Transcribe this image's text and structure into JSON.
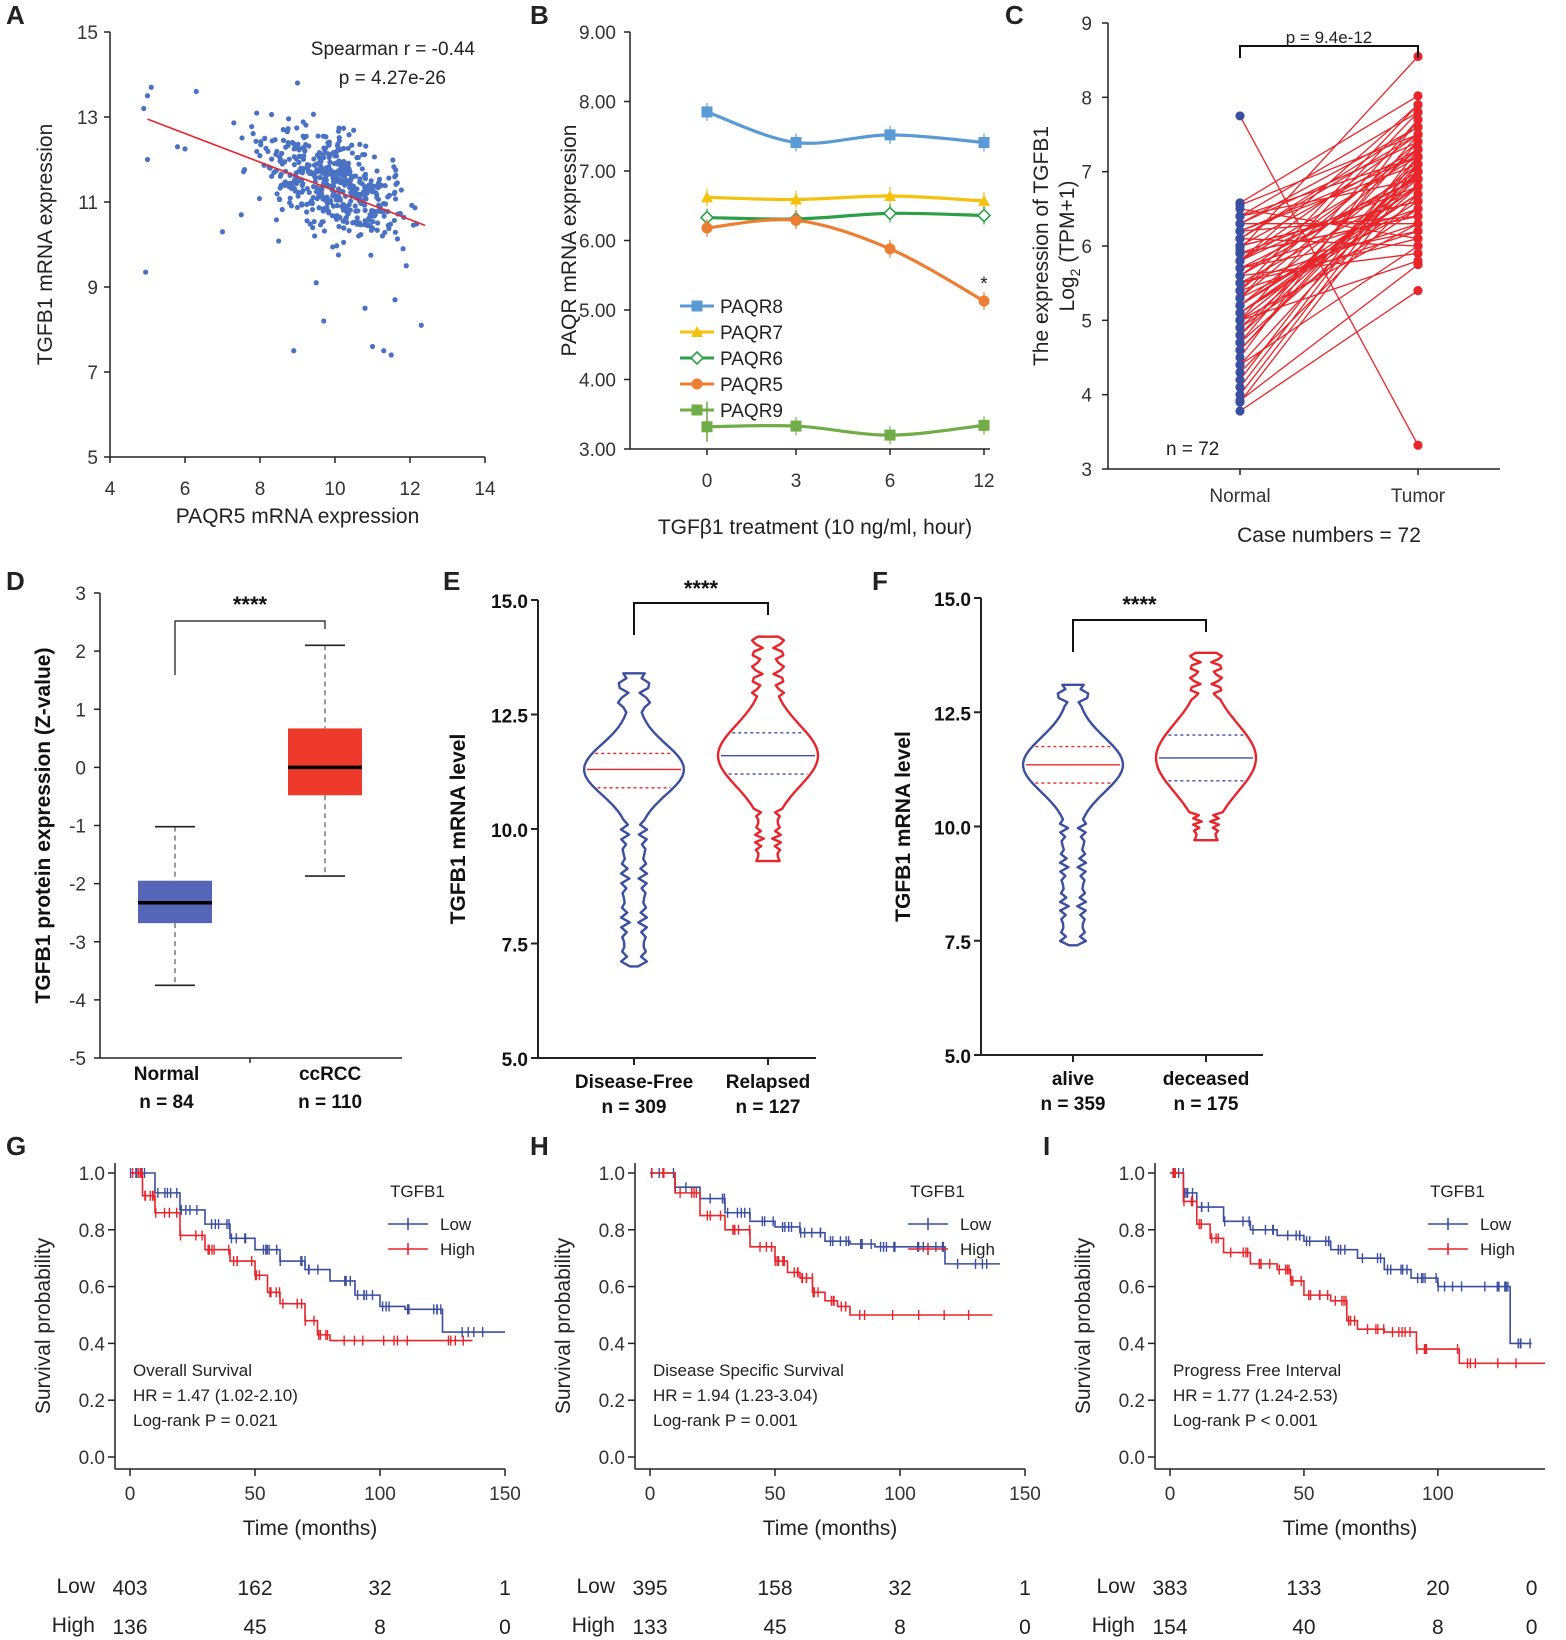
{
  "colors": {
    "blue": "#3a4fa0",
    "red": "#e8252a",
    "scatter": "#4a72c4",
    "fitline": "#e8252a",
    "paqr8": "#5b9bd5",
    "paqr7": "#f4c20d",
    "paqr6": "#2ca048",
    "paqr5": "#ed7d31",
    "paqr9": "#70ad47",
    "box_normal": "#5565b8",
    "box_tumor": "#ee3a2a"
  },
  "chart_data": [
    {
      "panel": "A",
      "type": "scatter",
      "xlabel": "PAQR5 mRNA expression",
      "ylabel": "TGFB1 mRNA expression",
      "xlim": [
        4,
        14
      ],
      "ylim": [
        5,
        15
      ],
      "xticks": [
        "4",
        "6",
        "8",
        "10",
        "12",
        "14"
      ],
      "yticks": [
        "5",
        "7",
        "9",
        "11",
        "13",
        "15"
      ],
      "annotation": [
        "Spearman r = -0.44",
        "p = 4.27e-26"
      ],
      "fit": {
        "x": [
          5.0,
          12.4
        ],
        "y": [
          12.95,
          10.45
        ]
      },
      "cloud": {
        "center_x": 10.0,
        "center_y": 11.4,
        "n": 520
      },
      "outliers": [
        {
          "x": 5.1,
          "y": 13.7
        },
        {
          "x": 5.0,
          "y": 13.5
        },
        {
          "x": 4.9,
          "y": 13.2
        },
        {
          "x": 5.0,
          "y": 12.0
        },
        {
          "x": 4.95,
          "y": 9.35
        },
        {
          "x": 6.3,
          "y": 13.6
        },
        {
          "x": 5.8,
          "y": 12.3
        },
        {
          "x": 6.0,
          "y": 12.25
        },
        {
          "x": 7.0,
          "y": 10.3
        },
        {
          "x": 7.5,
          "y": 10.7
        },
        {
          "x": 9.5,
          "y": 9.1
        },
        {
          "x": 9.7,
          "y": 8.2
        },
        {
          "x": 10.8,
          "y": 8.5
        },
        {
          "x": 11.0,
          "y": 7.6
        },
        {
          "x": 11.3,
          "y": 7.5
        },
        {
          "x": 11.5,
          "y": 7.4
        },
        {
          "x": 8.9,
          "y": 7.5
        },
        {
          "x": 12.3,
          "y": 8.1
        },
        {
          "x": 11.6,
          "y": 8.7
        },
        {
          "x": 11.9,
          "y": 9.5
        },
        {
          "x": 9.0,
          "y": 13.8
        }
      ]
    },
    {
      "panel": "B",
      "type": "line",
      "xlabel": "TGFβ1 treatment (10 ng/ml, hour)",
      "ylabel": "PAQR mRNA expression",
      "categories": [
        "0",
        "3",
        "6",
        "12"
      ],
      "ylim": [
        3,
        9
      ],
      "yticks": [
        "3.00",
        "4.00",
        "5.00",
        "6.00",
        "7.00",
        "8.00",
        "9.00"
      ],
      "series": [
        {
          "name": "PAQR8",
          "values": [
            7.85,
            7.41,
            7.52,
            7.41
          ]
        },
        {
          "name": "PAQR7",
          "values": [
            6.62,
            6.59,
            6.64,
            6.57
          ]
        },
        {
          "name": "PAQR6",
          "values": [
            6.33,
            6.31,
            6.39,
            6.36
          ]
        },
        {
          "name": "PAQR5",
          "values": [
            6.18,
            6.29,
            5.88,
            5.13
          ]
        },
        {
          "name": "PAQR9",
          "values": [
            3.32,
            3.33,
            3.2,
            3.34
          ]
        }
      ],
      "sig_marker": "*"
    },
    {
      "panel": "C",
      "type": "paired",
      "ylabel": "The expression of TGFB1",
      "ylabel2_pre": "Log",
      "ylabel2_sub": "2",
      "ylabel2_post": " (TPM+1)",
      "categories": [
        "Normal",
        "Tumor"
      ],
      "ylim": [
        3,
        9
      ],
      "yticks": [
        "3",
        "4",
        "5",
        "6",
        "7",
        "8",
        "9"
      ],
      "n_label": "n = 72",
      "pvalue": "p = 9.4e-12",
      "xlabel": "Case numbers = 72",
      "normal": [
        5.0,
        5.5,
        6.2,
        4.4,
        5.8,
        6.0,
        4.8,
        5.3,
        5.9,
        6.4,
        4.2,
        5.6,
        6.1,
        5.1,
        4.6,
        5.7,
        6.3,
        4.9,
        5.4,
        6.5,
        3.9,
        5.2,
        5.8,
        6.0,
        4.5,
        5.5,
        6.2,
        5.0,
        4.7,
        5.9,
        6.1,
        5.3,
        4.3,
        5.6,
        6.4,
        5.7,
        4.1,
        5.1,
        6.3,
        5.4,
        4.8,
        5.8,
        5.2,
        6.0,
        4.4,
        5.6,
        6.2,
        5.0,
        5.9,
        4.6,
        5.3,
        6.1,
        5.5,
        4.9,
        5.7,
        6.0,
        5.2,
        4.0,
        5.8,
        6.3,
        5.4,
        5.1,
        5.6,
        6.4,
        4.7,
        5.0,
        6.55,
        3.78,
        7.75,
        3.92,
        5.95,
        6.58
      ],
      "tumor": [
        6.3,
        6.8,
        7.2,
        6.0,
        7.5,
        6.6,
        7.0,
        7.8,
        6.4,
        6.9,
        7.3,
        5.9,
        7.6,
        6.7,
        7.1,
        6.2,
        7.4,
        6.5,
        7.9,
        6.1,
        7.0,
        6.8,
        7.2,
        6.6,
        7.7,
        6.3,
        7.1,
        6.9,
        7.5,
        6.4,
        6.0,
        7.3,
        6.7,
        7.0,
        7.8,
        6.5,
        7.2,
        6.8,
        7.6,
        6.2,
        7.4,
        6.9,
        7.1,
        6.6,
        7.0,
        7.3,
        6.4,
        7.7,
        6.8,
        7.2,
        6.5,
        7.5,
        6.1,
        7.0,
        6.9,
        7.3,
        6.7,
        7.1,
        7.9,
        6.3,
        7.4,
        6.6,
        7.0,
        7.2,
        6.8,
        5.8,
        7.5,
        5.4,
        3.32,
        5.75,
        8.55,
        8.02
      ]
    },
    {
      "panel": "D",
      "type": "box",
      "ylabel": "TGFB1 protein expression (Z-value)",
      "ylim": [
        -5,
        3
      ],
      "yticks": [
        "-5",
        "-4",
        "-3",
        "-2",
        "-1",
        "0",
        "1",
        "2",
        "3"
      ],
      "groups": [
        {
          "name": "Normal",
          "n": "n = 84",
          "min": -3.75,
          "q1": -2.68,
          "median": -2.33,
          "q3": -1.95,
          "max": -1.02
        },
        {
          "name": "ccRCC",
          "n": "n = 110",
          "min": -1.87,
          "q1": -0.48,
          "median": 0.0,
          "q3": 0.67,
          "max": 2.1
        }
      ],
      "sig": "****"
    },
    {
      "panel": "E",
      "type": "violin",
      "ylabel": "TGFB1 mRNA level",
      "ylim": [
        5,
        15
      ],
      "yticks": [
        "5.0",
        "7.5",
        "10.0",
        "12.5",
        "15.0"
      ],
      "groups": [
        {
          "name": "Disease-Free",
          "n": "n = 309",
          "min": 7.0,
          "max": 13.4,
          "q1": 10.9,
          "median": 11.3,
          "q3": 11.65
        },
        {
          "name": "Relapsed",
          "n": "n = 127",
          "min": 9.3,
          "max": 14.2,
          "q1": 11.2,
          "median": 11.6,
          "q3": 12.1
        }
      ],
      "sig": "****"
    },
    {
      "panel": "F",
      "type": "violin",
      "ylabel": "TGFB1 mRNA level",
      "ylim": [
        5,
        15
      ],
      "yticks": [
        "5.0",
        "7.5",
        "10.0",
        "12.5",
        "15.0"
      ],
      "groups": [
        {
          "name": "alive",
          "n": "n = 359",
          "min": 7.4,
          "max": 13.1,
          "q1": 10.95,
          "median": 11.35,
          "q3": 11.75
        },
        {
          "name": "deceased",
          "n": "n = 175",
          "min": 9.7,
          "max": 13.8,
          "q1": 11.0,
          "median": 11.5,
          "q3": 12.0
        }
      ],
      "sig": "****"
    },
    {
      "panel": "G",
      "type": "km",
      "legend_title": "TGFB1",
      "legend": [
        "Low",
        "High"
      ],
      "xlabel": "Time (months)",
      "ylabel": "Survival probability",
      "xlim": [
        0,
        150
      ],
      "ylim": [
        0,
        1
      ],
      "xticks": [
        "0",
        "50",
        "100",
        "150"
      ],
      "yticks": [
        "0.0",
        "0.2",
        "0.4",
        "0.6",
        "0.8",
        "1.0"
      ],
      "stats": [
        "Overall Survival",
        "HR = 1.47 (1.02-2.10)",
        "Log-rank P = 0.021"
      ],
      "low": {
        "t": [
          0,
          10,
          20,
          30,
          40,
          50,
          60,
          70,
          80,
          90,
          100,
          110,
          118,
          125,
          150
        ],
        "s": [
          1.0,
          0.93,
          0.87,
          0.82,
          0.77,
          0.73,
          0.69,
          0.66,
          0.62,
          0.57,
          0.53,
          0.52,
          0.52,
          0.44,
          0.44
        ]
      },
      "high": {
        "t": [
          0,
          5,
          10,
          20,
          30,
          40,
          50,
          55,
          60,
          70,
          75,
          80,
          100,
          120,
          137
        ],
        "s": [
          1.0,
          0.92,
          0.86,
          0.78,
          0.73,
          0.69,
          0.64,
          0.58,
          0.54,
          0.48,
          0.43,
          0.41,
          0.41,
          0.41,
          0.41
        ]
      },
      "risk": {
        "low": [
          "403",
          "162",
          "32",
          "1"
        ],
        "high": [
          "136",
          "45",
          "8",
          "0"
        ]
      }
    },
    {
      "panel": "H",
      "type": "km",
      "legend_title": "TGFB1",
      "legend": [
        "Low",
        "High"
      ],
      "xlabel": "Time (months)",
      "ylabel": "Survival probability",
      "xlim": [
        0,
        150
      ],
      "ylim": [
        0,
        1
      ],
      "xticks": [
        "0",
        "50",
        "100",
        "150"
      ],
      "yticks": [
        "0.0",
        "0.2",
        "0.4",
        "0.6",
        "0.8",
        "1.0"
      ],
      "stats": [
        "Disease Specific Survival",
        "HR = 1.94 (1.23-3.04)",
        "Log-rank P = 0.001"
      ],
      "low": {
        "t": [
          0,
          10,
          20,
          30,
          40,
          50,
          60,
          70,
          80,
          90,
          100,
          110,
          118,
          140
        ],
        "s": [
          1.0,
          0.95,
          0.91,
          0.86,
          0.83,
          0.81,
          0.79,
          0.76,
          0.75,
          0.74,
          0.74,
          0.74,
          0.68,
          0.68
        ]
      },
      "high": {
        "t": [
          0,
          10,
          20,
          30,
          40,
          50,
          55,
          60,
          65,
          70,
          75,
          80,
          100,
          137
        ],
        "s": [
          1.0,
          0.93,
          0.85,
          0.8,
          0.74,
          0.69,
          0.65,
          0.63,
          0.58,
          0.55,
          0.53,
          0.5,
          0.5,
          0.5
        ]
      },
      "risk": {
        "low": [
          "395",
          "158",
          "32",
          "1"
        ],
        "high": [
          "133",
          "45",
          "8",
          "0"
        ]
      }
    },
    {
      "panel": "I",
      "type": "km",
      "legend_title": "TGFB1",
      "legend": [
        "Low",
        "High"
      ],
      "xlabel": "Time (months)",
      "ylabel": "Survival probability",
      "xlim": [
        0,
        140
      ],
      "ylim": [
        0,
        1
      ],
      "xticks": [
        "0",
        "50",
        "100"
      ],
      "yticks": [
        "0.0",
        "0.2",
        "0.4",
        "0.6",
        "0.8",
        "1.0"
      ],
      "stats": [
        "Progress Free Interval",
        "HR = 1.77 (1.24-2.53)",
        "Log-rank P < 0.001"
      ],
      "low": {
        "t": [
          0,
          5,
          10,
          20,
          30,
          40,
          50,
          60,
          70,
          80,
          90,
          100,
          115,
          125,
          127,
          135
        ],
        "s": [
          1.0,
          0.93,
          0.88,
          0.83,
          0.8,
          0.78,
          0.76,
          0.73,
          0.7,
          0.66,
          0.63,
          0.6,
          0.6,
          0.6,
          0.4,
          0.4
        ]
      },
      "high": {
        "t": [
          0,
          5,
          10,
          15,
          20,
          30,
          40,
          45,
          50,
          60,
          66,
          70,
          80,
          92,
          108,
          140
        ],
        "s": [
          1.0,
          0.9,
          0.82,
          0.77,
          0.72,
          0.68,
          0.66,
          0.62,
          0.57,
          0.55,
          0.48,
          0.45,
          0.44,
          0.38,
          0.33,
          0.33
        ]
      },
      "risk": {
        "low": [
          "383",
          "133",
          "20",
          "0"
        ],
        "high": [
          "154",
          "40",
          "8",
          "0"
        ]
      }
    }
  ],
  "risk_labels": {
    "low": "Low",
    "high": "High"
  }
}
